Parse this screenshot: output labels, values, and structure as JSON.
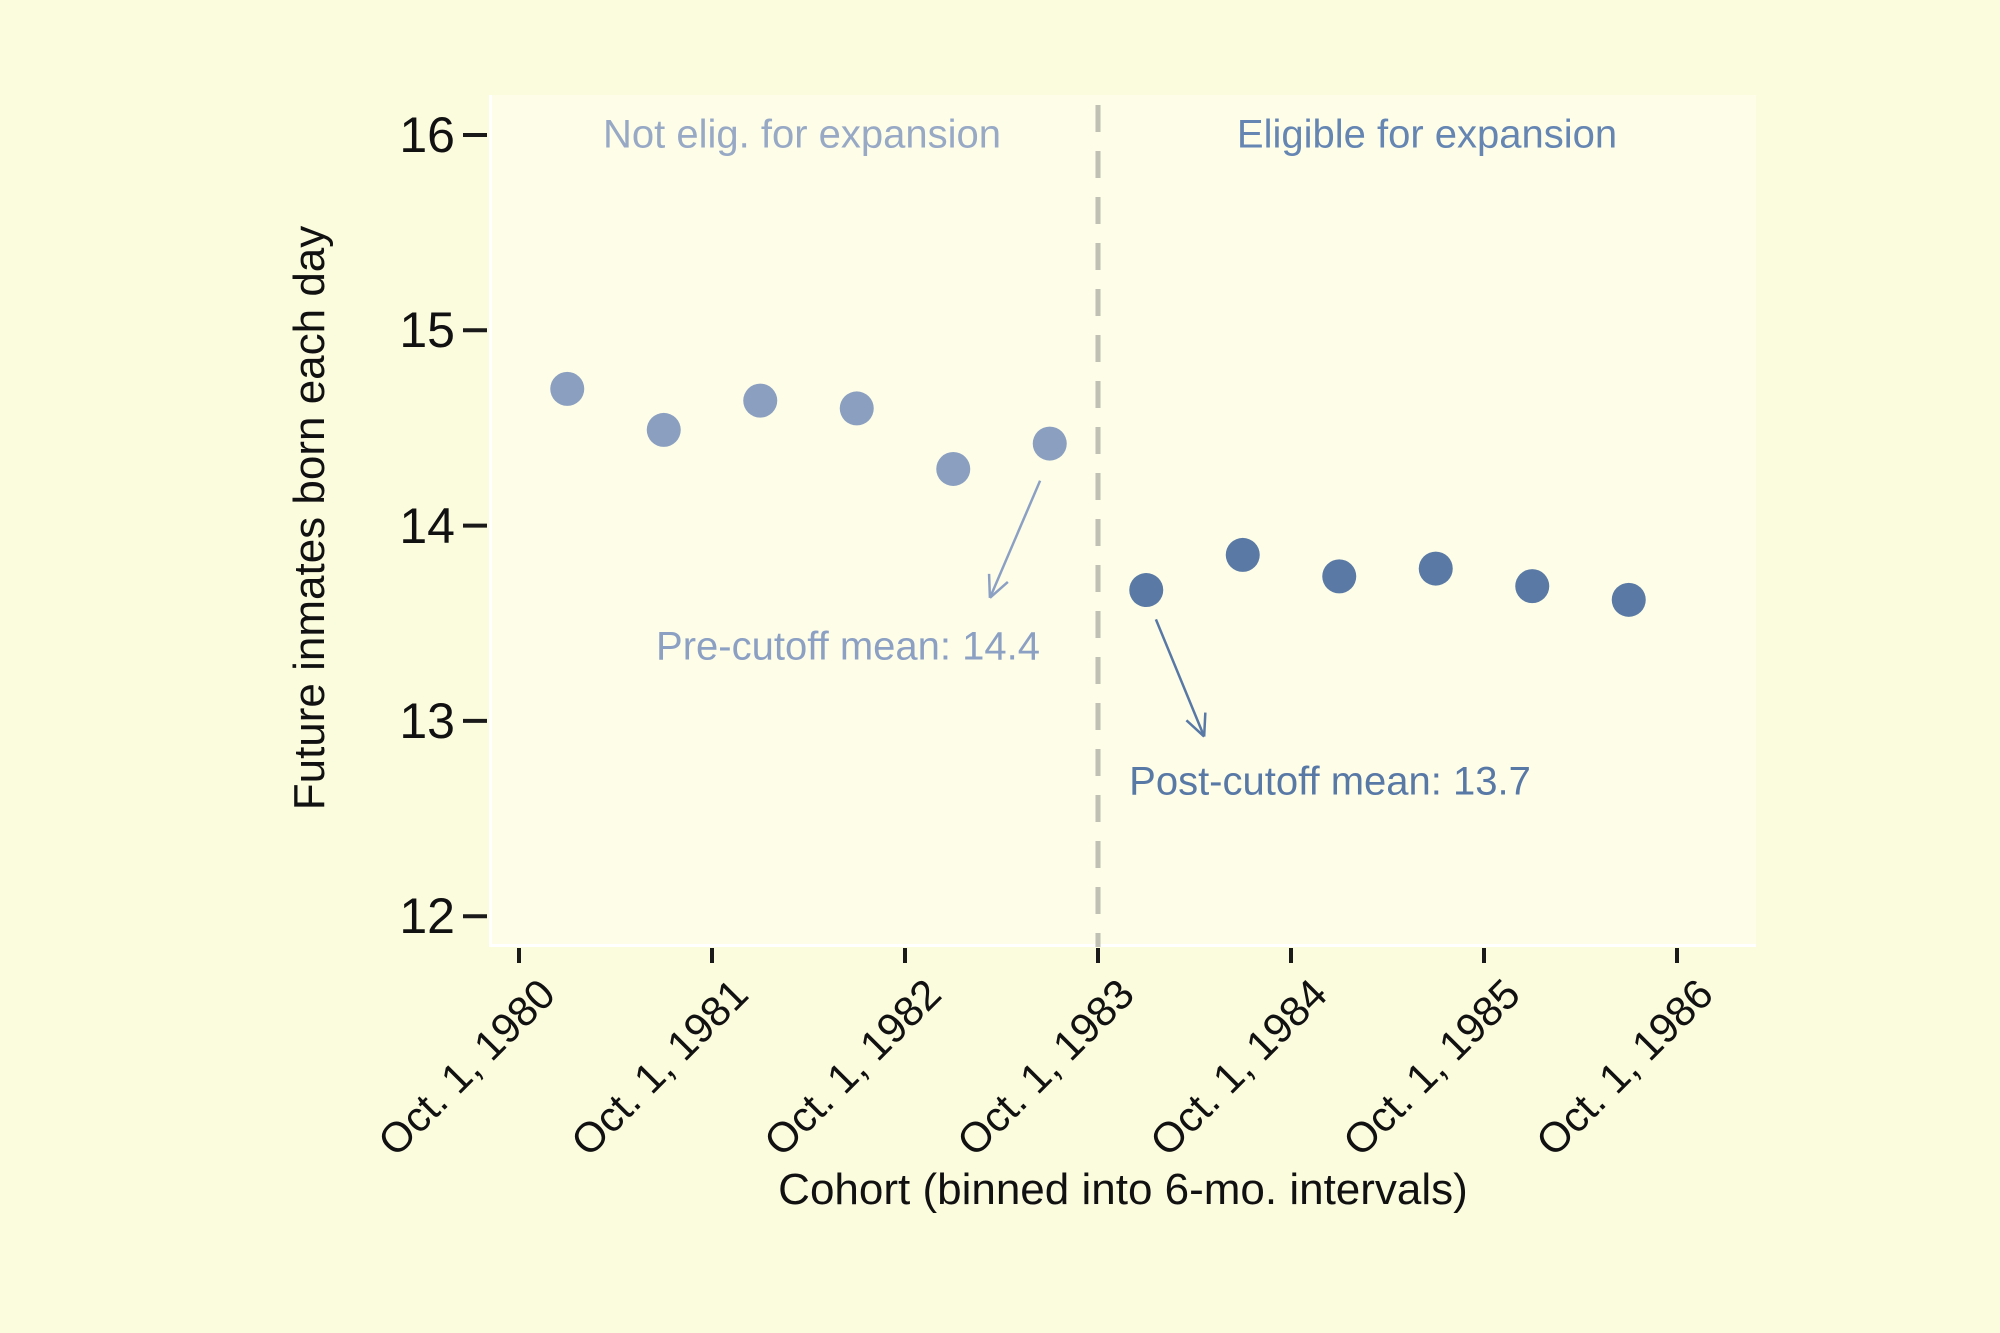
{
  "chart_data": {
    "type": "scatter",
    "title": "",
    "xlabel": "Cohort (binned into 6-mo. intervals)",
    "ylabel": "Future inmates born each day",
    "x_tick_labels": [
      "Oct. 1, 1980",
      "Oct. 1, 1981",
      "Oct. 1, 1982",
      "Oct. 1, 1983",
      "Oct. 1, 1984",
      "Oct. 1, 1985",
      "Oct. 1, 1986"
    ],
    "x_tick_positions_years": [
      0,
      1,
      2,
      3,
      4,
      5,
      6
    ],
    "y_ticks": [
      16,
      15,
      14,
      13,
      12
    ],
    "ylim": [
      11.85,
      16.25
    ],
    "xlim_years": [
      -0.15,
      6.41
    ],
    "grid": false,
    "legend_position": "none",
    "cutoff_line": {
      "x_year": 3,
      "color": "#c0c0b4",
      "style": "dashed"
    },
    "region_labels": {
      "left": "Not elig. for expansion",
      "right": "Eligible for expansion"
    },
    "series": [
      {
        "name": "Not eligible for expansion (pre-cutoff)",
        "color": "#8b9fc0",
        "x_years": [
          0.25,
          0.75,
          1.25,
          1.75,
          2.25,
          2.75
        ],
        "values": [
          14.7,
          14.49,
          14.64,
          14.6,
          14.29,
          14.42
        ]
      },
      {
        "name": "Eligible for expansion (post-cutoff)",
        "color": "#5a7aa5",
        "x_years": [
          3.25,
          3.75,
          4.25,
          4.75,
          5.25,
          5.75
        ],
        "values": [
          13.67,
          13.85,
          13.74,
          13.78,
          13.69,
          13.62
        ]
      }
    ],
    "annotations": [
      {
        "text": "Pre-cutoff mean: 14.4",
        "color": "#8ca0c4",
        "text_x_year": 1.7,
        "text_value": 13.38,
        "arrow_from": [
          2.7,
          14.23
        ],
        "arrow_to": [
          2.44,
          13.63
        ]
      },
      {
        "text": "Post-cutoff mean: 13.7",
        "color": "#5878a6",
        "text_x_year": 4.2,
        "text_value": 12.69,
        "arrow_from": [
          3.3,
          13.52
        ],
        "arrow_to": [
          3.55,
          12.92
        ]
      }
    ]
  }
}
